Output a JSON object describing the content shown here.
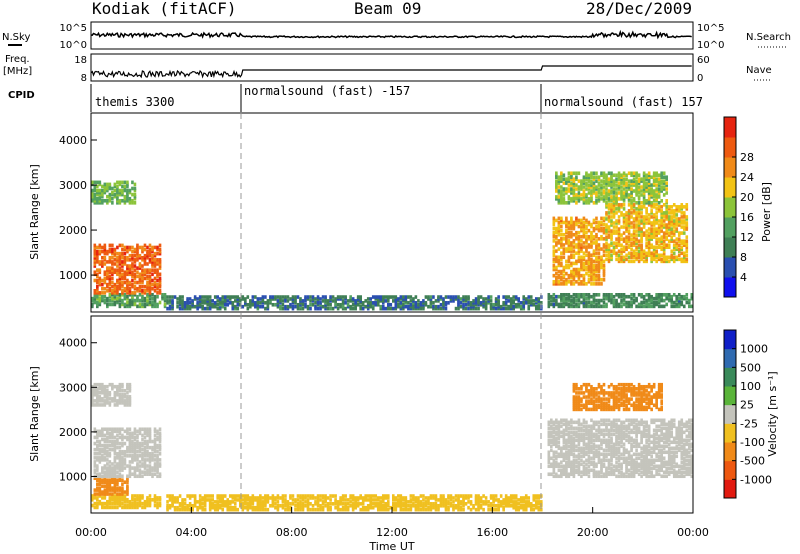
{
  "header": {
    "station": "Kodiak (fitACF)",
    "beam": "Beam 09",
    "date": "28/Dec/2009"
  },
  "panels": {
    "nsky": {
      "left_label": "N.Sky",
      "left_ticks": [
        "10^5",
        "10^0"
      ],
      "right_label": "N.Search",
      "right_ticks": [
        "10^5",
        "10^0"
      ]
    },
    "freq": {
      "left_label_line1": "Freq.",
      "left_label_line2": "[MHz]",
      "left_ticks": [
        "18",
        "8"
      ],
      "right_label": "Nave",
      "right_ticks": [
        "60",
        "0"
      ]
    },
    "cpid": {
      "label": "CPID",
      "modes": [
        "themis 3300",
        "normalsound (fast) -157",
        "normalsound (fast) 157"
      ]
    }
  },
  "colors": {
    "power_scale": [
      "#1010ee",
      "#2a4fb0",
      "#3f7f55",
      "#52a060",
      "#8cc43a",
      "#f2c315",
      "#f08a18",
      "#ee5a10",
      "#e62410"
    ],
    "velocity_scale": [
      "#1020c8",
      "#2f6ab0",
      "#3a8a5a",
      "#5ab43a",
      "#c4c4bc",
      "#f0c020",
      "#f08a18",
      "#ee5810",
      "#e21a10"
    ],
    "ground": "#c0c0b8"
  },
  "chart_data": [
    {
      "type": "heatmap",
      "name": "power",
      "ylabel": "Slant Range [km]",
      "yticks": [
        "1000",
        "2000",
        "3000",
        "4000"
      ],
      "ylim": [
        180,
        4600
      ],
      "colorbar": {
        "label": "Power [dB]",
        "ticks": [
          "4",
          "8",
          "12",
          "16",
          "20",
          "24",
          "28"
        ],
        "range": [
          0,
          32
        ]
      },
      "regions": [
        {
          "t": [
            0.0,
            3.0
          ],
          "r": [
            300,
            600
          ],
          "value": 12
        },
        {
          "t": [
            0.1,
            2.8
          ],
          "r": [
            600,
            1700
          ],
          "value": 26
        },
        {
          "t": [
            0.0,
            1.8
          ],
          "r": [
            2600,
            3100
          ],
          "value": 14
        },
        {
          "t": [
            3.0,
            18.0
          ],
          "r": [
            250,
            550
          ],
          "value": 8
        },
        {
          "t": [
            18.2,
            24.0
          ],
          "r": [
            300,
            600
          ],
          "value": 10
        },
        {
          "t": [
            18.4,
            20.5
          ],
          "r": [
            800,
            2300
          ],
          "value": 22
        },
        {
          "t": [
            20.5,
            23.8
          ],
          "r": [
            1300,
            2600
          ],
          "value": 20
        },
        {
          "t": [
            18.5,
            23.0
          ],
          "r": [
            2600,
            3300
          ],
          "value": 16
        }
      ]
    },
    {
      "type": "heatmap",
      "name": "velocity",
      "ylabel": "Slant Range [km]",
      "yticks": [
        "1000",
        "2000",
        "3000",
        "4000"
      ],
      "ylim": [
        180,
        4600
      ],
      "colorbar": {
        "label": "Velocity [m s⁻¹]",
        "ticks": [
          "1000",
          "500",
          "100",
          "25",
          "-25",
          "-100",
          "-500",
          "-1000"
        ]
      },
      "regions": [
        {
          "t": [
            0.0,
            2.8
          ],
          "r": [
            300,
            600
          ],
          "value": -50
        },
        {
          "t": [
            0.1,
            1.5
          ],
          "r": [
            600,
            1000
          ],
          "value": -120
        },
        {
          "t": [
            0.1,
            2.8
          ],
          "r": [
            1000,
            2100
          ],
          "value": 0
        },
        {
          "t": [
            0.0,
            1.6
          ],
          "r": [
            2600,
            3100
          ],
          "value": 0
        },
        {
          "t": [
            3.0,
            18.0
          ],
          "r": [
            250,
            600
          ],
          "value": -60
        },
        {
          "t": [
            18.2,
            24.0
          ],
          "r": [
            1000,
            2300
          ],
          "value": 0
        },
        {
          "t": [
            19.2,
            22.8
          ],
          "r": [
            2500,
            3100
          ],
          "value": -400
        }
      ]
    }
  ],
  "x_axis": {
    "label": "Time UT",
    "ticks": [
      "00:00",
      "04:00",
      "08:00",
      "12:00",
      "16:00",
      "20:00",
      "00:00"
    ],
    "range_hours": [
      0,
      24
    ]
  }
}
